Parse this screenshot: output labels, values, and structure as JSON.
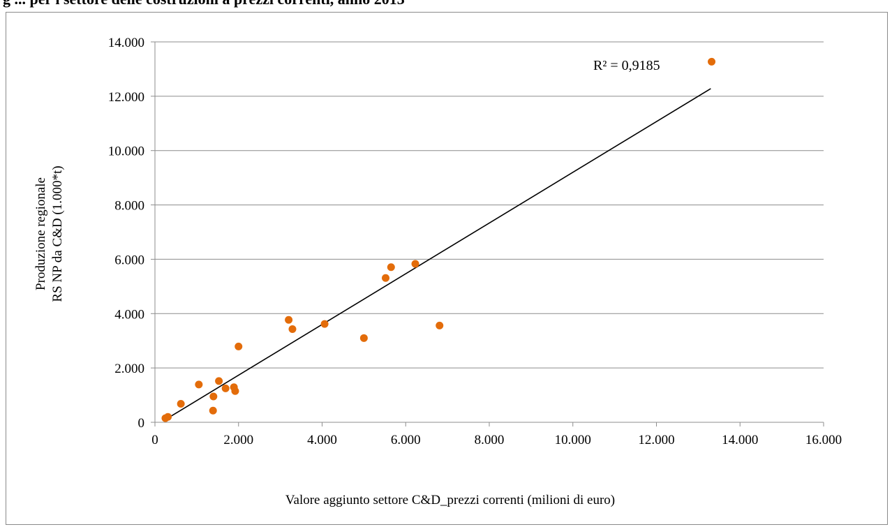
{
  "page": {
    "heading": "g ... per i settore delle costruzioni a prezzi correnti, anno 2013"
  },
  "chart_data": {
    "type": "scatter",
    "xlabel": "Valore aggiunto settore C&D_prezzi correnti (milioni di euro)",
    "ylabel_line1": "Produzione  regionale",
    "ylabel_line2": "RS NP da C&D (1.000*t)",
    "xlim": [
      0,
      16000
    ],
    "ylim": [
      0,
      14000
    ],
    "x_ticks": [
      0,
      2000,
      4000,
      6000,
      8000,
      10000,
      12000,
      14000,
      16000
    ],
    "y_ticks": [
      0,
      2000,
      4000,
      6000,
      8000,
      10000,
      12000,
      14000
    ],
    "x_tick_labels": [
      "0",
      "2.000",
      "4.000",
      "6.000",
      "8.000",
      "10.000",
      "12.000",
      "14.000",
      "16.000"
    ],
    "y_tick_labels": [
      "0",
      "2.000",
      "4.000",
      "6.000",
      "8.000",
      "10.000",
      "12.000",
      "14.000"
    ],
    "grid": "horizontal",
    "legend": "none",
    "marker_color": "#E36C0A",
    "trendline_color": "#000000",
    "points": [
      {
        "x": 250,
        "y": 150
      },
      {
        "x": 310,
        "y": 200
      },
      {
        "x": 620,
        "y": 680
      },
      {
        "x": 1050,
        "y": 1390
      },
      {
        "x": 1390,
        "y": 430
      },
      {
        "x": 1400,
        "y": 950
      },
      {
        "x": 1530,
        "y": 1520
      },
      {
        "x": 1690,
        "y": 1250
      },
      {
        "x": 1890,
        "y": 1290
      },
      {
        "x": 1920,
        "y": 1150
      },
      {
        "x": 2000,
        "y": 2790
      },
      {
        "x": 3200,
        "y": 3770
      },
      {
        "x": 3290,
        "y": 3430
      },
      {
        "x": 4060,
        "y": 3620
      },
      {
        "x": 5000,
        "y": 3100
      },
      {
        "x": 5520,
        "y": 5310
      },
      {
        "x": 5650,
        "y": 5710
      },
      {
        "x": 6230,
        "y": 5830
      },
      {
        "x": 6810,
        "y": 3560
      },
      {
        "x": 13320,
        "y": 13270
      }
    ],
    "trendline": {
      "x_start": 250,
      "y_start": 100,
      "x_end": 13300,
      "y_end": 12280
    },
    "annotation": "R² = 0,9185"
  }
}
